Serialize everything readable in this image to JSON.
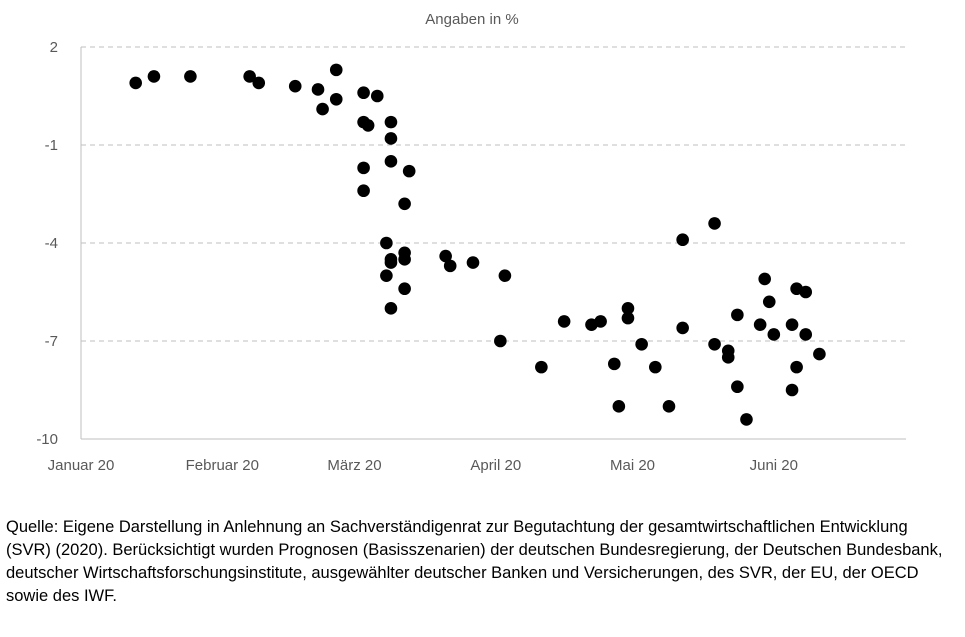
{
  "chart_data": {
    "type": "scatter",
    "unit_label": "Angaben in %",
    "y_ticks": [
      "2",
      "-1",
      "-4",
      "-7",
      "-10"
    ],
    "ylim": [
      -10,
      2
    ],
    "x_tick_labels": [
      "Januar 20",
      "Februar 20",
      "März 20",
      "April 20",
      "Mai 20",
      "Juni 20"
    ],
    "xlim": [
      "2020-01-01",
      "2020-06-30"
    ],
    "x_ticks_dates": [
      "2020-01-01",
      "2020-02-01",
      "2020-03-01",
      "2020-04-01",
      "2020-05-01",
      "2020-06-01"
    ],
    "grid": "horizontal dashed",
    "points": [
      {
        "x": "2020-01-13",
        "y": 0.9
      },
      {
        "x": "2020-01-17",
        "y": 1.1
      },
      {
        "x": "2020-01-25",
        "y": 1.1
      },
      {
        "x": "2020-02-07",
        "y": 1.1
      },
      {
        "x": "2020-02-09",
        "y": 0.9
      },
      {
        "x": "2020-02-17",
        "y": 0.8
      },
      {
        "x": "2020-02-22",
        "y": 0.7
      },
      {
        "x": "2020-02-23",
        "y": 0.1
      },
      {
        "x": "2020-02-26",
        "y": 1.3
      },
      {
        "x": "2020-02-26",
        "y": 0.4
      },
      {
        "x": "2020-03-03",
        "y": 0.6
      },
      {
        "x": "2020-03-03",
        "y": -0.3
      },
      {
        "x": "2020-03-03",
        "y": -1.7
      },
      {
        "x": "2020-03-03",
        "y": -2.4
      },
      {
        "x": "2020-03-04",
        "y": -0.4
      },
      {
        "x": "2020-03-06",
        "y": 0.5
      },
      {
        "x": "2020-03-08",
        "y": -4.0
      },
      {
        "x": "2020-03-08",
        "y": -5.0
      },
      {
        "x": "2020-03-09",
        "y": -0.3
      },
      {
        "x": "2020-03-09",
        "y": -0.8
      },
      {
        "x": "2020-03-09",
        "y": -1.5
      },
      {
        "x": "2020-03-09",
        "y": -4.5
      },
      {
        "x": "2020-03-09",
        "y": -4.6
      },
      {
        "x": "2020-03-09",
        "y": -6.0
      },
      {
        "x": "2020-03-12",
        "y": -2.8
      },
      {
        "x": "2020-03-12",
        "y": -4.3
      },
      {
        "x": "2020-03-12",
        "y": -4.5
      },
      {
        "x": "2020-03-12",
        "y": -5.4
      },
      {
        "x": "2020-03-13",
        "y": -1.8
      },
      {
        "x": "2020-03-21",
        "y": -4.4
      },
      {
        "x": "2020-03-22",
        "y": -4.7
      },
      {
        "x": "2020-03-27",
        "y": -4.6
      },
      {
        "x": "2020-04-03",
        "y": -5.0
      },
      {
        "x": "2020-04-02",
        "y": -7.0
      },
      {
        "x": "2020-04-11",
        "y": -7.8
      },
      {
        "x": "2020-04-16",
        "y": -6.4
      },
      {
        "x": "2020-04-22",
        "y": -6.5
      },
      {
        "x": "2020-04-24",
        "y": -6.4
      },
      {
        "x": "2020-04-27",
        "y": -7.7
      },
      {
        "x": "2020-04-28",
        "y": -9.0
      },
      {
        "x": "2020-04-30",
        "y": -6.0
      },
      {
        "x": "2020-04-30",
        "y": -6.3
      },
      {
        "x": "2020-05-03",
        "y": -7.1
      },
      {
        "x": "2020-05-06",
        "y": -7.8
      },
      {
        "x": "2020-05-09",
        "y": -9.0
      },
      {
        "x": "2020-05-12",
        "y": -6.6
      },
      {
        "x": "2020-05-12",
        "y": -3.9
      },
      {
        "x": "2020-05-19",
        "y": -3.4
      },
      {
        "x": "2020-05-19",
        "y": -7.1
      },
      {
        "x": "2020-05-22",
        "y": -7.3
      },
      {
        "x": "2020-05-22",
        "y": -7.5
      },
      {
        "x": "2020-05-24",
        "y": -6.2
      },
      {
        "x": "2020-05-24",
        "y": -8.4
      },
      {
        "x": "2020-05-26",
        "y": -9.4
      },
      {
        "x": "2020-05-29",
        "y": -6.5
      },
      {
        "x": "2020-05-30",
        "y": -5.1
      },
      {
        "x": "2020-05-31",
        "y": -5.8
      },
      {
        "x": "2020-06-01",
        "y": -6.8
      },
      {
        "x": "2020-06-05",
        "y": -6.5
      },
      {
        "x": "2020-06-05",
        "y": -8.5
      },
      {
        "x": "2020-06-06",
        "y": -5.4
      },
      {
        "x": "2020-06-06",
        "y": -7.8
      },
      {
        "x": "2020-06-08",
        "y": -5.5
      },
      {
        "x": "2020-06-08",
        "y": -6.8
      },
      {
        "x": "2020-06-11",
        "y": -7.4
      }
    ]
  },
  "source_note": "Quelle: Eigene Darstellung in Anlehnung an Sachverständigenrat zur Begutachtung der gesamtwirtschaftlichen Entwicklung (SVR) (2020). Berücksichtigt wurden Prognosen (Basisszenarien) der deutschen Bundesregierung, der Deutschen Bundesbank, deutscher Wirtschaftsforschungsinstitute, ausgewählter deutscher Banken und Versicherungen, des SVR, der EU, der OECD sowie des IWF."
}
